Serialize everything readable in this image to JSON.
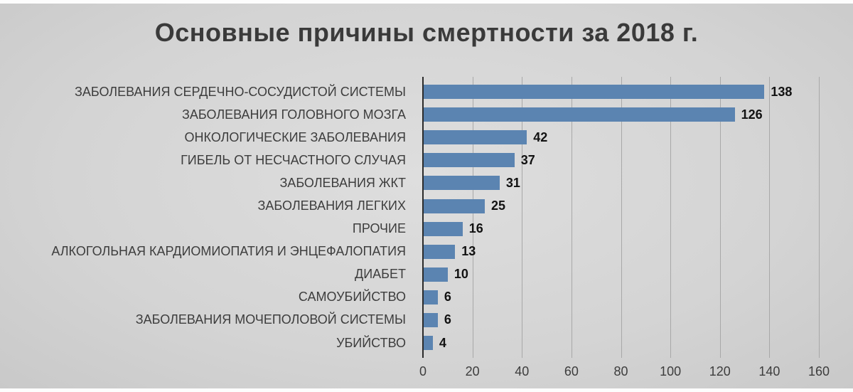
{
  "chart_data": {
    "type": "bar",
    "orientation": "horizontal",
    "title": "Основные причины смертности за 2018 г.",
    "categories": [
      "ЗАБОЛЕВАНИЯ СЕРДЕЧНО-СОСУДИСТОЙ СИСТЕМЫ",
      "ЗАБОЛЕВАНИЯ ГОЛОВНОГО МОЗГА",
      "ОНКОЛОГИЧЕСКИЕ ЗАБОЛЕВАНИЯ",
      "ГИБЕЛЬ ОТ НЕСЧАСТНОГО СЛУЧАЯ",
      "ЗАБОЛЕВАНИЯ ЖКТ",
      "ЗАБОЛЕВАНИЯ ЛЕГКИХ",
      "ПРОЧИЕ",
      "АЛКОГОЛЬНАЯ КАРДИОМИОПАТИЯ И ЭНЦЕФАЛОПАТИЯ",
      "ДИАБЕТ",
      "САМОУБИЙСТВО",
      "ЗАБОЛЕВАНИЯ МОЧЕПОЛОВОЙ СИСТЕМЫ",
      "УБИЙСТВО"
    ],
    "values": [
      138,
      126,
      42,
      37,
      31,
      25,
      16,
      13,
      10,
      6,
      6,
      4
    ],
    "xlim": [
      0,
      160
    ],
    "xticks": [
      0,
      20,
      40,
      60,
      80,
      100,
      120,
      140,
      160
    ],
    "grid": true,
    "value_labels": true,
    "legend": "none",
    "bar_color": "#5b84b1",
    "background_color": "#d4d4d4",
    "gridline_color": "#a8a8a8",
    "axis_line_color": "#2b2b2b",
    "title_color": "#3a3a3a",
    "label_color": "#3d3d3d"
  }
}
